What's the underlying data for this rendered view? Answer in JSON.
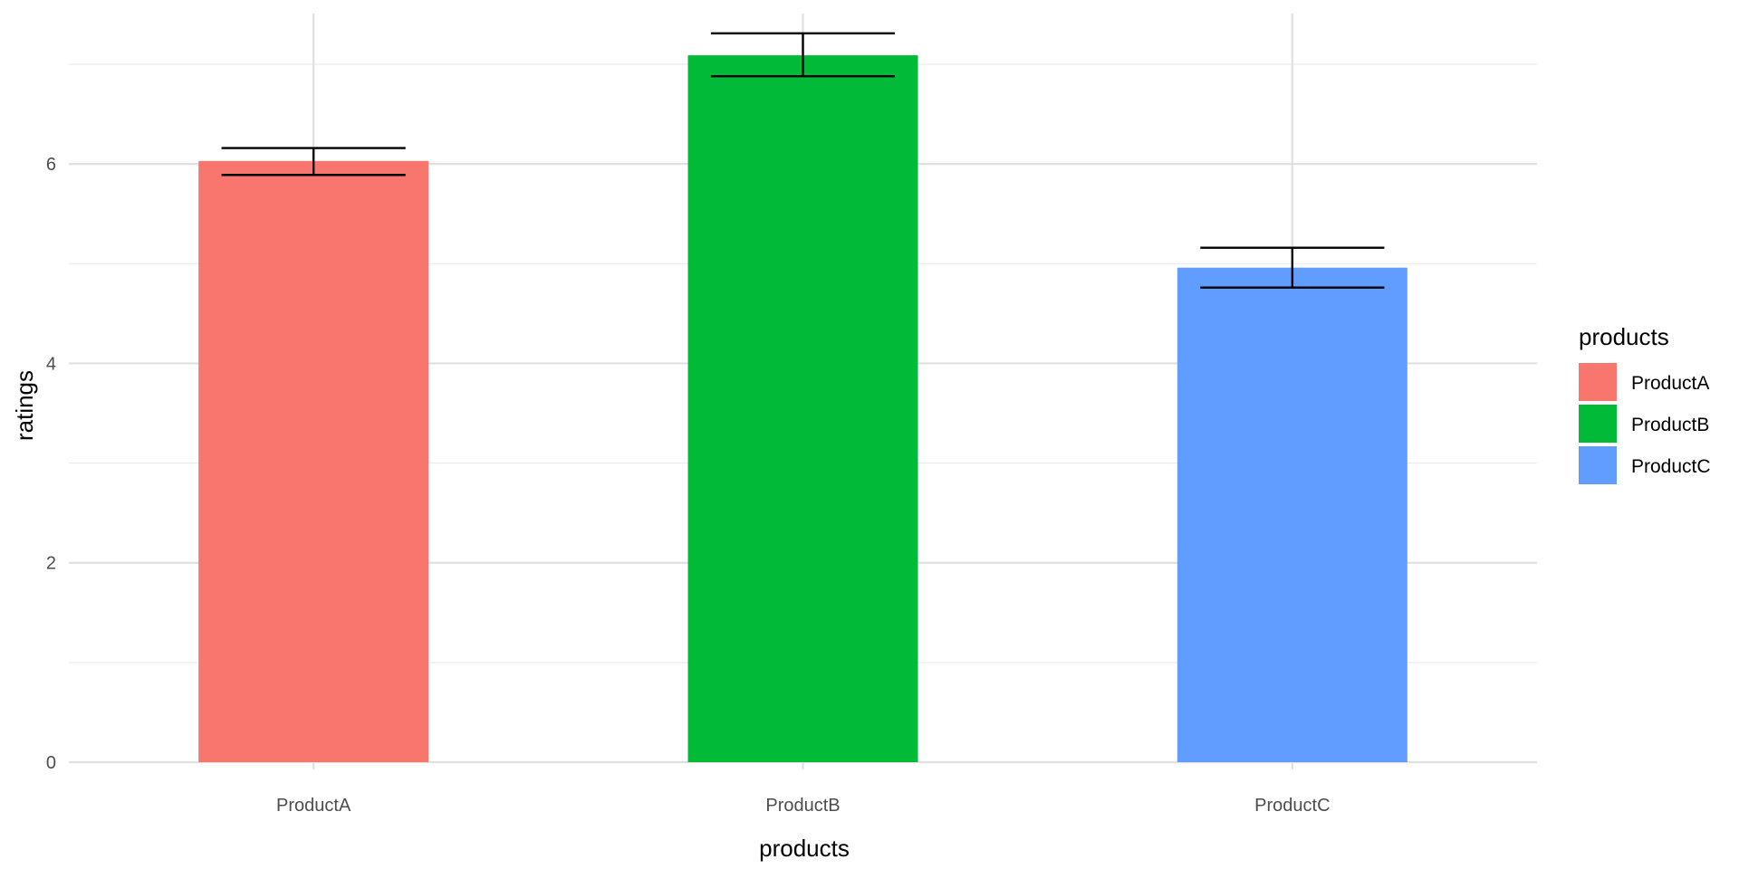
{
  "chart_data": {
    "type": "bar",
    "xlabel": "products",
    "ylabel": "ratings",
    "categories": [
      "ProductA",
      "ProductB",
      "ProductC"
    ],
    "values": [
      6.03,
      7.09,
      4.96
    ],
    "error_bars": [
      {
        "low": 5.89,
        "high": 6.16
      },
      {
        "low": 6.88,
        "high": 7.31
      },
      {
        "low": 4.76,
        "high": 5.16
      }
    ],
    "colors": [
      "#F8766D",
      "#00BA38",
      "#619CFF"
    ],
    "ylim": [
      0,
      7.7
    ],
    "yticks": [
      0,
      2,
      4,
      6
    ],
    "grid": true,
    "legend": {
      "title": "products",
      "placement": "right",
      "entries": [
        "ProductA",
        "ProductB",
        "ProductC"
      ]
    }
  }
}
